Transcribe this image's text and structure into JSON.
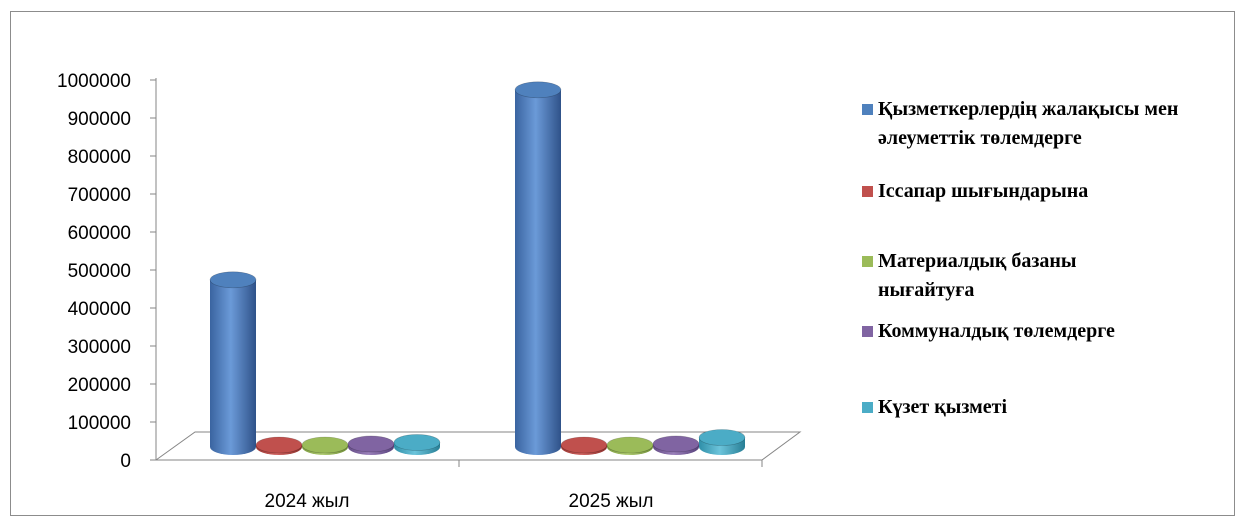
{
  "chart_data": {
    "type": "bar",
    "categories": [
      "2024 жыл",
      "2025 жыл"
    ],
    "ylim": [
      0,
      1000000
    ],
    "yticks": [
      0,
      100000,
      200000,
      300000,
      400000,
      500000,
      600000,
      700000,
      800000,
      900000,
      1000000
    ],
    "series": [
      {
        "name": "Қызметкерлердің жалақысы мен әлеуметтік төлемдерге",
        "color": "#4f81bd",
        "values": [
          440000,
          940000
        ]
      },
      {
        "name": "Іссапар шығындарына",
        "color": "#c0504d",
        "values": [
          5000,
          5000
        ]
      },
      {
        "name": "Материалдық базаны нығайтуға",
        "color": "#9bbb59",
        "values": [
          5000,
          5000
        ]
      },
      {
        "name": "Коммуналдық төлемдерге",
        "color": "#8064a2",
        "values": [
          8000,
          8000
        ]
      },
      {
        "name": "Күзет қызметі",
        "color": "#4bacc6",
        "values": [
          12000,
          25000
        ]
      }
    ],
    "legend": "right",
    "grid": false,
    "style": "3d-cylinder"
  }
}
